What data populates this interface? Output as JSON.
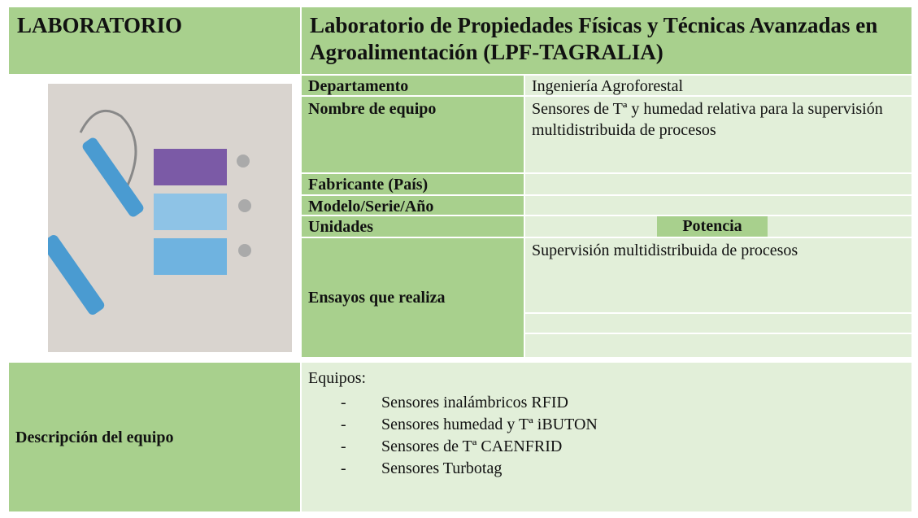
{
  "header": {
    "lab_label": "LABORATORIO",
    "title": "Laboratorio de Propiedades Físicas y Técnicas Avanzadas en Agroalimentación (LPF-TAGRALIA)"
  },
  "fields": [
    {
      "label": "Departamento",
      "value": "Ingeniería Agroforestal"
    },
    {
      "label": "Nombre de equipo",
      "value": "Sensores de Tª y humedad relativa para la supervisión multidistribuida de procesos"
    },
    {
      "label": "Fabricante (País)"
    },
    {
      "label": "Modelo/Serie/Año"
    },
    {
      "label": "Unidades",
      "value": "Potencia"
    },
    {
      "label": "Ensayos que realiza",
      "value": "Supervisión multidistribuida de procesos"
    }
  ],
  "description": {
    "label": "Descripción del equipo",
    "intro": "Equipos:",
    "items": [
      "Sensores inalámbricos RFID",
      "Sensores humedad y Tª iBUTON",
      "Sensores de Tª CAENFRID",
      "Sensores Turbotag"
    ]
  }
}
